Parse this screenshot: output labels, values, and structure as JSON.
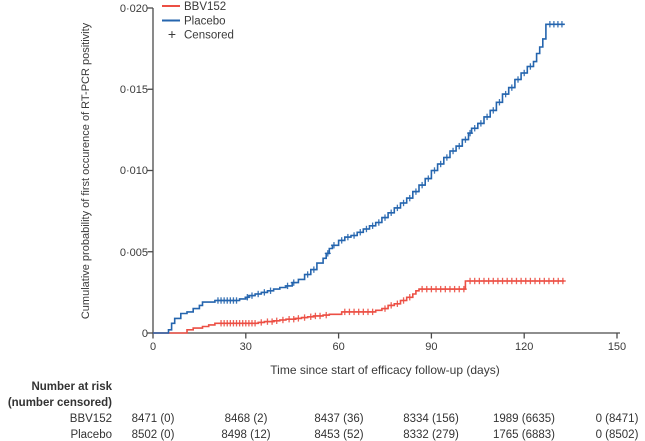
{
  "chart_data": {
    "type": "line",
    "subtype": "kaplan-meier-step",
    "title": "",
    "xlabel": "Time since start of efficacy follow-up (days)",
    "ylabel": "Cumulative probability of first occurence of RT-PCR positivity",
    "xlim": [
      0,
      150
    ],
    "ylim": [
      0,
      0.02
    ],
    "end_day": 133,
    "grid": false,
    "legend_position": "top-left-inside",
    "censored_label": "Censored",
    "censored_marker": "+",
    "axis_color": "#4a4a4a",
    "x_ticks": [
      {
        "value": 0,
        "label": "0"
      },
      {
        "value": 30,
        "label": "30"
      },
      {
        "value": 60,
        "label": "60"
      },
      {
        "value": 90,
        "label": "90"
      },
      {
        "value": 120,
        "label": "120"
      },
      {
        "value": 150,
        "label": "150"
      }
    ],
    "y_ticks": [
      {
        "value": 0,
        "label": "0"
      },
      {
        "value": 0.005,
        "label": "0·005"
      },
      {
        "value": 0.01,
        "label": "0·010"
      },
      {
        "value": 0.015,
        "label": "0·015"
      },
      {
        "value": 0.02,
        "label": "0·020"
      }
    ],
    "series": [
      {
        "name": "BBV152",
        "color": "#ec4f44",
        "steps": [
          [
            0,
            0
          ],
          [
            11,
            0.0002
          ],
          [
            13,
            0.0003
          ],
          [
            16,
            0.0004
          ],
          [
            18,
            0.0005
          ],
          [
            20,
            0.0006
          ],
          [
            34,
            0.00065
          ],
          [
            36,
            0.0007
          ],
          [
            39,
            0.00075
          ],
          [
            41,
            0.0008
          ],
          [
            43,
            0.00085
          ],
          [
            46,
            0.0009
          ],
          [
            48,
            0.00095
          ],
          [
            50,
            0.001
          ],
          [
            52,
            0.00105
          ],
          [
            55,
            0.0011
          ],
          [
            57,
            0.00115
          ],
          [
            61,
            0.0013
          ],
          [
            72,
            0.0014
          ],
          [
            74,
            0.0015
          ],
          [
            76,
            0.0017
          ],
          [
            78,
            0.0018
          ],
          [
            80,
            0.002
          ],
          [
            82,
            0.0022
          ],
          [
            84,
            0.0024
          ],
          [
            85,
            0.0026
          ],
          [
            86,
            0.0027
          ],
          [
            101,
            0.0032
          ]
        ],
        "censor_days": [
          22,
          23,
          24,
          25,
          26,
          27,
          28,
          29,
          30,
          31,
          32,
          33,
          35,
          37,
          38.5,
          40,
          42,
          44,
          45.5,
          47,
          49,
          51,
          52.5,
          54,
          56,
          62,
          63.5,
          65,
          66.5,
          68,
          69.5,
          71,
          75,
          77,
          79,
          81,
          83,
          87,
          88.5,
          90,
          91.5,
          93,
          94.5,
          96,
          97.5,
          99,
          100.5,
          102.5,
          104,
          105.5,
          107,
          108.5,
          110,
          111.5,
          113,
          114.5,
          116,
          117.5,
          119,
          120.5,
          122,
          123.5,
          125,
          126.5,
          128,
          129.5,
          131,
          132.5
        ]
      },
      {
        "name": "Placebo",
        "color": "#2565ae",
        "steps": [
          [
            0,
            0
          ],
          [
            5,
            0.0002
          ],
          [
            6,
            0.0006
          ],
          [
            7,
            0.0009
          ],
          [
            9,
            0.0012
          ],
          [
            11,
            0.0013
          ],
          [
            13,
            0.0015
          ],
          [
            15,
            0.0017
          ],
          [
            16,
            0.0019
          ],
          [
            20,
            0.002
          ],
          [
            28,
            0.0021
          ],
          [
            30,
            0.0022
          ],
          [
            31,
            0.0023
          ],
          [
            33,
            0.0024
          ],
          [
            35,
            0.0025
          ],
          [
            37,
            0.0026
          ],
          [
            39,
            0.0027
          ],
          [
            41,
            0.0028
          ],
          [
            43,
            0.0029
          ],
          [
            45,
            0.0031
          ],
          [
            47,
            0.0033
          ],
          [
            49,
            0.0036
          ],
          [
            51,
            0.0039
          ],
          [
            53,
            0.0043
          ],
          [
            55,
            0.0046
          ],
          [
            56,
            0.0049
          ],
          [
            57,
            0.0052
          ],
          [
            58,
            0.0054
          ],
          [
            60,
            0.0057
          ],
          [
            62,
            0.0059
          ],
          [
            64,
            0.006
          ],
          [
            66,
            0.0062
          ],
          [
            68,
            0.0064
          ],
          [
            70,
            0.0066
          ],
          [
            72,
            0.0068
          ],
          [
            74,
            0.0071
          ],
          [
            76,
            0.0074
          ],
          [
            78,
            0.0077
          ],
          [
            80,
            0.008
          ],
          [
            82,
            0.0083
          ],
          [
            84,
            0.0087
          ],
          [
            86,
            0.0091
          ],
          [
            88,
            0.0095
          ],
          [
            90,
            0.01
          ],
          [
            92,
            0.0104
          ],
          [
            94,
            0.0108
          ],
          [
            96,
            0.0112
          ],
          [
            98,
            0.0115
          ],
          [
            100,
            0.0119
          ],
          [
            102,
            0.0123
          ],
          [
            103,
            0.0126
          ],
          [
            105,
            0.0129
          ],
          [
            107,
            0.0133
          ],
          [
            109,
            0.0137
          ],
          [
            111,
            0.0142
          ],
          [
            113,
            0.0147
          ],
          [
            115,
            0.0151
          ],
          [
            117,
            0.0156
          ],
          [
            119,
            0.016
          ],
          [
            121,
            0.0164
          ],
          [
            123,
            0.0167
          ],
          [
            124,
            0.0172
          ],
          [
            125,
            0.0176
          ],
          [
            126,
            0.0181
          ],
          [
            127,
            0.019
          ]
        ],
        "censor_days": [
          21,
          22,
          23,
          24,
          25,
          26,
          27,
          30.5,
          32,
          34,
          36,
          38,
          43.5,
          45.5,
          50,
          52,
          56.5,
          58.5,
          61,
          63,
          65,
          67,
          69,
          71,
          73,
          75,
          77,
          79,
          81,
          83,
          85,
          87,
          89,
          91,
          93,
          95,
          97,
          99,
          101,
          102.5,
          104,
          106,
          108,
          110,
          112,
          114,
          116,
          118,
          120,
          122,
          128.3,
          129.6,
          130.9,
          132.2
        ]
      }
    ]
  },
  "risk_table": {
    "header_line1": "Number at risk",
    "header_line2": "(number censored)",
    "time_points": [
      0,
      30,
      60,
      90,
      120,
      150
    ],
    "rows": [
      {
        "label": "BBV152",
        "values": [
          "8471 (0)",
          "8468 (2)",
          "8437 (36)",
          "8334 (156)",
          "1989 (6635)",
          "0 (8471)"
        ]
      },
      {
        "label": "Placebo",
        "values": [
          "8502 (0)",
          "8498 (12)",
          "8453 (52)",
          "8332 (279)",
          "1765 (6883)",
          "0 (8502)"
        ]
      }
    ]
  }
}
